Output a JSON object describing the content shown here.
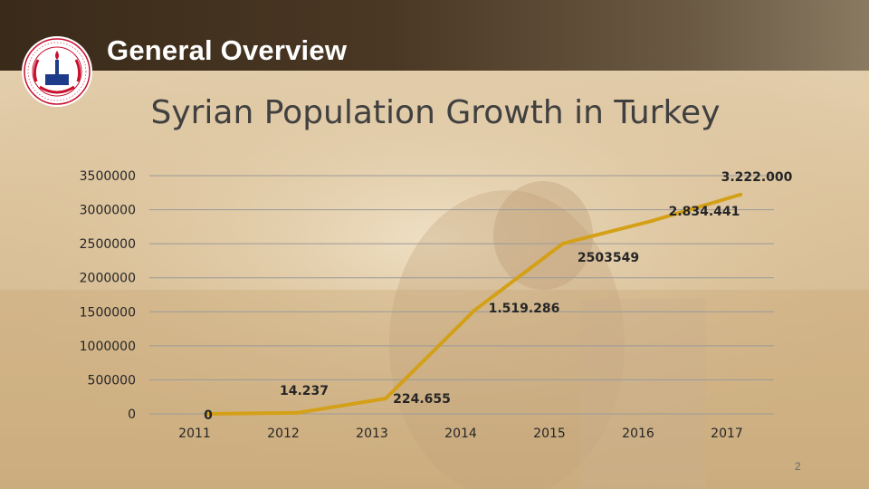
{
  "header": {
    "title": "General Overview"
  },
  "logo": {
    "icon": "ministry-emblem-icon"
  },
  "page_number": "2",
  "chart_data": {
    "type": "line",
    "title": "Syrian Population Growth in Turkey",
    "categories": [
      "2011",
      "2012",
      "2013",
      "2014",
      "2015",
      "2016",
      "2017"
    ],
    "values": [
      0,
      14237,
      224655,
      1519286,
      2503549,
      2834441,
      3222000
    ],
    "data_labels": [
      "0",
      "14.237",
      "224.655",
      "1.519.286",
      "2503549",
      "2.834.441",
      "3.222.000"
    ],
    "y_ticks": [
      "0",
      "500000",
      "1000000",
      "1500000",
      "2000000",
      "2500000",
      "3000000",
      "3500000"
    ],
    "ylim": [
      0,
      3500000
    ],
    "grid": true,
    "line_color": "#d4a017",
    "xlabel": "",
    "ylabel": ""
  }
}
